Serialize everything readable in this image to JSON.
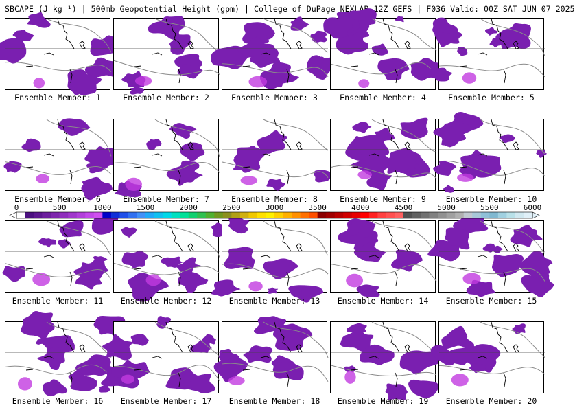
{
  "title": "SBCAPE (J kg⁻¹) | 500mb Geopotential Height (gpm) | College of DuPage NEXLAB 12Z GEFS | F036 Valid: 00Z SAT JUN 07 2025",
  "colors": {
    "cape_fill": "#7a1fb0",
    "cape_core": "#c23be0",
    "geo_lines": "#8a8a8a",
    "coast": "#000000"
  },
  "colorbar": {
    "ticks": [
      "0",
      "500",
      "1000",
      "1500",
      "2000",
      "2500",
      "3000",
      "3500",
      "4000",
      "4500",
      "5000",
      "5500",
      "6000"
    ],
    "colors": [
      "#ffffff",
      "#4b1080",
      "#5c178f",
      "#6d1f9e",
      "#7e27ad",
      "#8f2fbc",
      "#a037cb",
      "#b13fda",
      "#c247e9",
      "#d04ff0",
      "#0000c8",
      "#1030d8",
      "#2050e8",
      "#3070f0",
      "#4090f8",
      "#20a8f8",
      "#10c0f0",
      "#00d8e8",
      "#00e0c0",
      "#00e098",
      "#10d070",
      "#30c050",
      "#50b030",
      "#709820",
      "#8c9020",
      "#b0a018",
      "#d0b010",
      "#f0c800",
      "#ffe000",
      "#fff000",
      "#ffd000",
      "#ffb000",
      "#ff9000",
      "#ff7000",
      "#ff5000",
      "#8b0000",
      "#a00000",
      "#b80000",
      "#d00000",
      "#e80000",
      "#ff0000",
      "#ff2020",
      "#ff4040",
      "#ff5050",
      "#ff6060",
      "#505050",
      "#606060",
      "#707070",
      "#808080",
      "#909090",
      "#a0a0a0",
      "#b0b0b0",
      "#c0c8d0",
      "#a8c8d8",
      "#90c0d8",
      "#80b8d0",
      "#a0d0e0",
      "#b8e0e8",
      "#d0e8f0",
      "#e0f0f8"
    ]
  },
  "panels": [
    {
      "label": "Ensemble Member: 1"
    },
    {
      "label": "Ensemble Member: 2"
    },
    {
      "label": "Ensemble Member: 3"
    },
    {
      "label": "Ensemble Member: 4"
    },
    {
      "label": "Ensemble Member: 5"
    },
    {
      "label": "Ensemble Member: 6"
    },
    {
      "label": "Ensemble Member: 7"
    },
    {
      "label": "Ensemble Member: 8"
    },
    {
      "label": "Ensemble Member: 9"
    },
    {
      "label": "Ensemble Member: 10"
    },
    {
      "label": "Ensemble Member: 11"
    },
    {
      "label": "Ensemble Member: 12"
    },
    {
      "label": "Ensemble Member: 13"
    },
    {
      "label": "Ensemble Member: 14"
    },
    {
      "label": "Ensemble Member: 15"
    },
    {
      "label": "Ensemble Member: 16"
    },
    {
      "label": "Ensemble Member: 17"
    },
    {
      "label": "Ensemble Member: 18"
    },
    {
      "label": "Ensemble Member: 19"
    },
    {
      "label": "Ensemble Member: 20"
    }
  ]
}
